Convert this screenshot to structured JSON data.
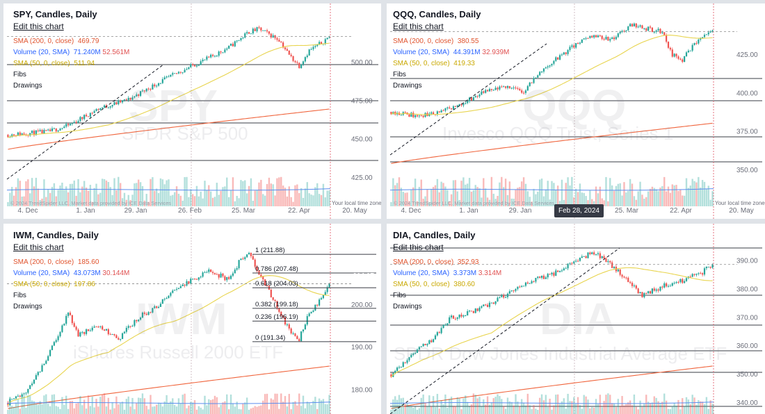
{
  "panels": [
    {
      "id": "spy",
      "title": "SPY, Candles, Daily",
      "edit": "Edit this chart",
      "legend": [
        {
          "label": "SMA (200, 0, close)",
          "value": "469.79",
          "cls": "red"
        },
        {
          "label": "Volume (20, SMA)",
          "value": "71.240M",
          "value2": "52.561M",
          "cls": "blue"
        },
        {
          "label": "SMA (50, 0, close)",
          "value": "511.94",
          "cls": "yellow"
        },
        {
          "label": "Fibs",
          "cls": "plain"
        },
        {
          "label": "Drawings",
          "cls": "plain"
        }
      ],
      "watermark": "SPY",
      "watermark_sub": "SPDR S&P 500",
      "price_tag": "517.14",
      "price_tag_color": "#e04545",
      "yticks": [
        "500.00",
        "475.00",
        "450.00",
        "425.00"
      ],
      "xticks": [
        "4. Dec",
        "1. Jan",
        "29. Jan",
        "26. Feb",
        "25. Mar",
        "22. Apr",
        "20. May"
      ],
      "footer": "© 2024 TrendSpider LLC. Market data provided by ICE Data Services",
      "timezone": "Your local time zone"
    },
    {
      "id": "qqq",
      "title": "QQQ, Candles, Daily",
      "edit": "Edit this chart",
      "legend": [
        {
          "label": "SMA (200, 0, close)",
          "value": "380.55",
          "cls": "red"
        },
        {
          "label": "Volume (20, SMA)",
          "value": "44.391M",
          "value2": "32.939M",
          "cls": "blue"
        },
        {
          "label": "SMA (50, 0, close)",
          "value": "419.33",
          "cls": "yellow"
        },
        {
          "label": "Fibs",
          "cls": "plain"
        },
        {
          "label": "Drawings",
          "cls": "plain"
        }
      ],
      "watermark": "QQQ",
      "watermark_sub": "Invesco QQQ Trust, Series 1",
      "price_tag": "440.32",
      "price_tag_color": "#e04545",
      "yticks": [
        "425.00",
        "400.00",
        "375.00",
        "350.00"
      ],
      "xticks": [
        "4. Dec",
        "1. Jan",
        "29. Jan",
        "25. Mar",
        "22. Apr",
        "20. May"
      ],
      "crosshair_date": "Feb 28, 2024",
      "footer": "© 2024 TrendSpider LLC. Market data provided by ICE Data Services",
      "timezone": "Your local time zone"
    },
    {
      "id": "iwm",
      "title": "IWM, Candles, Daily",
      "edit": "Edit this chart",
      "legend": [
        {
          "label": "SMA (200, 0, close)",
          "value": "185.60",
          "cls": "red"
        },
        {
          "label": "Volume (20, SMA)",
          "value": "43.073M",
          "value2": "30.144M",
          "cls": "blue"
        },
        {
          "label": "SMA (50, 0, close)",
          "value": "197.86",
          "cls": "yellow"
        },
        {
          "label": "Fibs",
          "cls": "plain"
        },
        {
          "label": "Drawings",
          "cls": "plain"
        }
      ],
      "watermark": "IWM",
      "watermark_sub": "iShares Russell 2000 ETF",
      "price_tag": "204.97",
      "price_tag_color": "#26a69a",
      "yticks": [
        "200.00",
        "190.00",
        "180.00"
      ],
      "fib_levels": [
        "1 (211.88)",
        "0.786 (207.48)",
        "0.618 (204.03)",
        "0.382 (199.18)",
        "0.236 (196.19)",
        "0 (191.34)"
      ]
    },
    {
      "id": "dia",
      "title": "DIA, Candles, Daily",
      "edit": "Edit this chart",
      "legend": [
        {
          "label": "SMA (200, 0, close)",
          "value": "352.93",
          "cls": "red"
        },
        {
          "label": "Volume (20, SMA)",
          "value": "3.373M",
          "value2": "3.314M",
          "cls": "blue"
        },
        {
          "label": "SMA (50, 0, close)",
          "value": "380.60",
          "cls": "yellow"
        },
        {
          "label": "Fibs",
          "cls": "plain"
        },
        {
          "label": "Drawings",
          "cls": "plain"
        }
      ],
      "watermark": "DIA",
      "watermark_sub": "SPDR Dow Jones Industrial Average ETF",
      "price_tag": "388.74",
      "price_tag_color": "#e04545",
      "yticks": [
        "390.00",
        "380.00",
        "370.00",
        "360.00",
        "350.00",
        "340.00"
      ]
    }
  ],
  "colors": {
    "up": "#26a69a",
    "down": "#ef5350",
    "sma200": "#f0643c",
    "sma50": "#e8d44d",
    "volume_sma": "#5b8def"
  },
  "chart_data": [
    {
      "type": "candlestick",
      "symbol": "SPY",
      "title": "SPY, Candles, Daily",
      "x_range": [
        "2023-11",
        "2024-05"
      ],
      "ylim": [
        420,
        525
      ],
      "last_close": 517.14,
      "sma200_last": 469.79,
      "sma50_last": 511.94,
      "keypoints": [
        [
          0,
          453
        ],
        [
          20,
          455
        ],
        [
          30,
          459
        ],
        [
          45,
          470
        ],
        [
          60,
          476
        ],
        [
          75,
          487
        ],
        [
          90,
          497
        ],
        [
          100,
          503
        ],
        [
          110,
          510
        ],
        [
          120,
          520
        ],
        [
          125,
          522
        ],
        [
          135,
          515
        ],
        [
          140,
          505
        ],
        [
          145,
          498
        ],
        [
          150,
          508
        ],
        [
          155,
          512
        ],
        [
          160,
          517
        ]
      ],
      "yticks": [
        500,
        475,
        450,
        425
      ]
    },
    {
      "type": "candlestick",
      "symbol": "QQQ",
      "title": "QQQ, Candles, Daily",
      "x_range": [
        "2023-11",
        "2024-05"
      ],
      "ylim": [
        340,
        445
      ],
      "last_close": 440.32,
      "sma200_last": 380.55,
      "sma50_last": 419.33,
      "keypoints": [
        [
          0,
          388
        ],
        [
          15,
          385
        ],
        [
          30,
          390
        ],
        [
          45,
          400
        ],
        [
          60,
          405
        ],
        [
          65,
          400
        ],
        [
          75,
          415
        ],
        [
          90,
          430
        ],
        [
          100,
          438
        ],
        [
          110,
          435
        ],
        [
          120,
          445
        ],
        [
          125,
          443
        ],
        [
          135,
          440
        ],
        [
          140,
          425
        ],
        [
          145,
          422
        ],
        [
          150,
          430
        ],
        [
          155,
          437
        ],
        [
          160,
          440
        ]
      ],
      "yticks": [
        425,
        400,
        375,
        350
      ]
    },
    {
      "type": "candlestick",
      "symbol": "IWM",
      "title": "IWM, Candles, Daily",
      "x_range": [
        "2023-11",
        "2024-05"
      ],
      "ylim": [
        175,
        215
      ],
      "last_close": 204.97,
      "sma200_last": 185.6,
      "sma50_last": 197.86,
      "fib_levels": [
        211.88,
        207.48,
        204.03,
        199.18,
        196.19,
        191.34
      ],
      "keypoints": [
        [
          0,
          177
        ],
        [
          10,
          180
        ],
        [
          20,
          188
        ],
        [
          30,
          198
        ],
        [
          35,
          193
        ],
        [
          45,
          195
        ],
        [
          55,
          192
        ],
        [
          65,
          197
        ],
        [
          75,
          200
        ],
        [
          85,
          204
        ],
        [
          100,
          208
        ],
        [
          110,
          206
        ],
        [
          115,
          210
        ],
        [
          120,
          212
        ],
        [
          130,
          203
        ],
        [
          140,
          194
        ],
        [
          145,
          192
        ],
        [
          150,
          198
        ],
        [
          155,
          201
        ],
        [
          160,
          205
        ]
      ],
      "yticks": [
        200,
        190,
        180
      ]
    },
    {
      "type": "candlestick",
      "symbol": "DIA",
      "title": "DIA, Candles, Daily",
      "x_range": [
        "2023-11",
        "2024-05"
      ],
      "ylim": [
        337,
        397
      ],
      "last_close": 388.74,
      "sma200_last": 352.93,
      "sma50_last": 380.6,
      "keypoints": [
        [
          0,
          350
        ],
        [
          10,
          357
        ],
        [
          20,
          362
        ],
        [
          30,
          370
        ],
        [
          40,
          372
        ],
        [
          50,
          375
        ],
        [
          60,
          379
        ],
        [
          70,
          383
        ],
        [
          80,
          385
        ],
        [
          90,
          389
        ],
        [
          100,
          393
        ],
        [
          105,
          391
        ],
        [
          115,
          385
        ],
        [
          125,
          378
        ],
        [
          135,
          381
        ],
        [
          145,
          383
        ],
        [
          155,
          386
        ],
        [
          160,
          389
        ]
      ],
      "yticks": [
        390,
        380,
        370,
        360,
        350,
        340
      ]
    }
  ]
}
